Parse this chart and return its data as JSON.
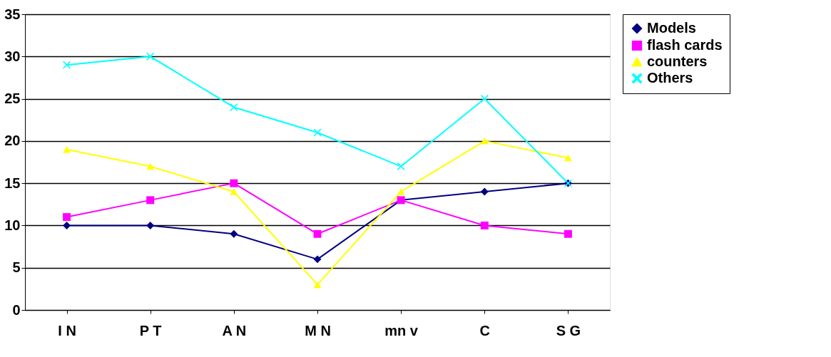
{
  "chart_data": {
    "type": "line",
    "categories": [
      "I N",
      "P T",
      "A N",
      "M N",
      "mn v",
      "C",
      "S G"
    ],
    "series": [
      {
        "name": "Models",
        "color": "#000080",
        "marker": "diamond",
        "values": [
          10,
          10,
          9,
          6,
          13,
          14,
          15
        ]
      },
      {
        "name": "flash cards",
        "color": "#ff00ff",
        "marker": "square",
        "values": [
          11,
          13,
          15,
          9,
          13,
          10,
          9
        ]
      },
      {
        "name": "counters",
        "color": "#ffff00",
        "marker": "triangle",
        "values": [
          19,
          17,
          14,
          3,
          14,
          20,
          18
        ]
      },
      {
        "name": "Others",
        "color": "#00ffff",
        "marker": "cross",
        "values": [
          29,
          30,
          24,
          21,
          17,
          25,
          15
        ]
      }
    ],
    "ylim": [
      0,
      35
    ],
    "yticks": [
      0,
      5,
      10,
      15,
      20,
      25,
      30,
      35
    ],
    "grid": "y",
    "legend": "right"
  }
}
